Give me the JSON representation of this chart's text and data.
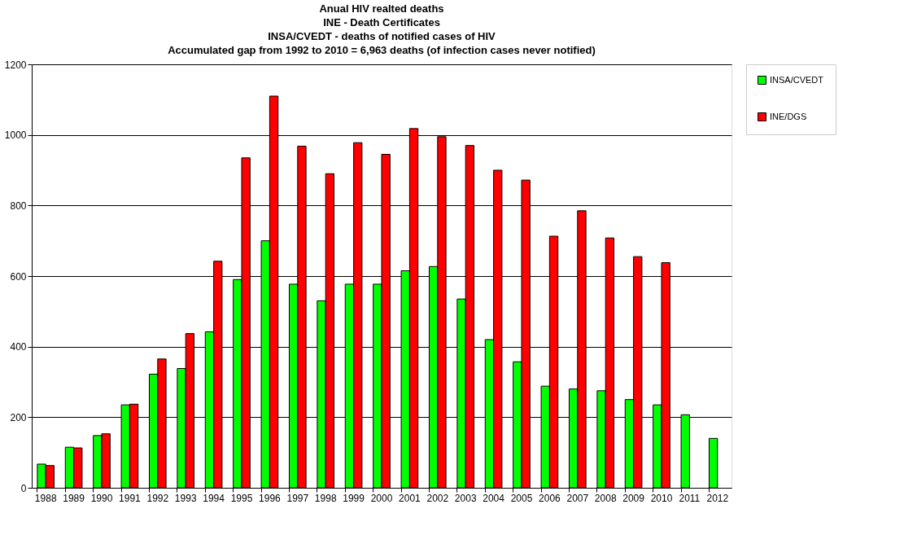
{
  "chart_data": {
    "type": "bar",
    "title": [
      "Anual HIV realted deaths",
      "INE - Death Certificates",
      "INSA/CVEDT  - deaths of notified cases of HIV",
      "Accumulated gap from 1992 to 2010 = 6,963 deaths (of infection cases never notified)"
    ],
    "categories": [
      "1988",
      "1989",
      "1990",
      "1991",
      "1992",
      "1993",
      "1994",
      "1995",
      "1996",
      "1997",
      "1998",
      "1999",
      "2000",
      "2001",
      "2002",
      "2003",
      "2004",
      "2005",
      "2006",
      "2007",
      "2008",
      "2009",
      "2010",
      "2011",
      "2012"
    ],
    "series": [
      {
        "name": "INSA/CVEDT",
        "color": "#00ff00",
        "values": [
          67,
          115,
          148,
          235,
          322,
          338,
          442,
          590,
          700,
          577,
          530,
          577,
          577,
          615,
          627,
          535,
          420,
          357,
          288,
          280,
          275,
          250,
          235,
          207,
          140
        ]
      },
      {
        "name": "INE/DGS",
        "color": "#ff0000",
        "values": [
          63,
          113,
          153,
          237,
          365,
          437,
          642,
          935,
          1110,
          968,
          890,
          978,
          945,
          1018,
          995,
          970,
          900,
          872,
          713,
          785,
          708,
          655,
          638,
          null,
          null
        ]
      }
    ],
    "ylim": [
      0,
      1200
    ],
    "yticks": [
      0,
      200,
      400,
      600,
      800,
      1000,
      1200
    ],
    "grid": "y",
    "legend": "right"
  }
}
